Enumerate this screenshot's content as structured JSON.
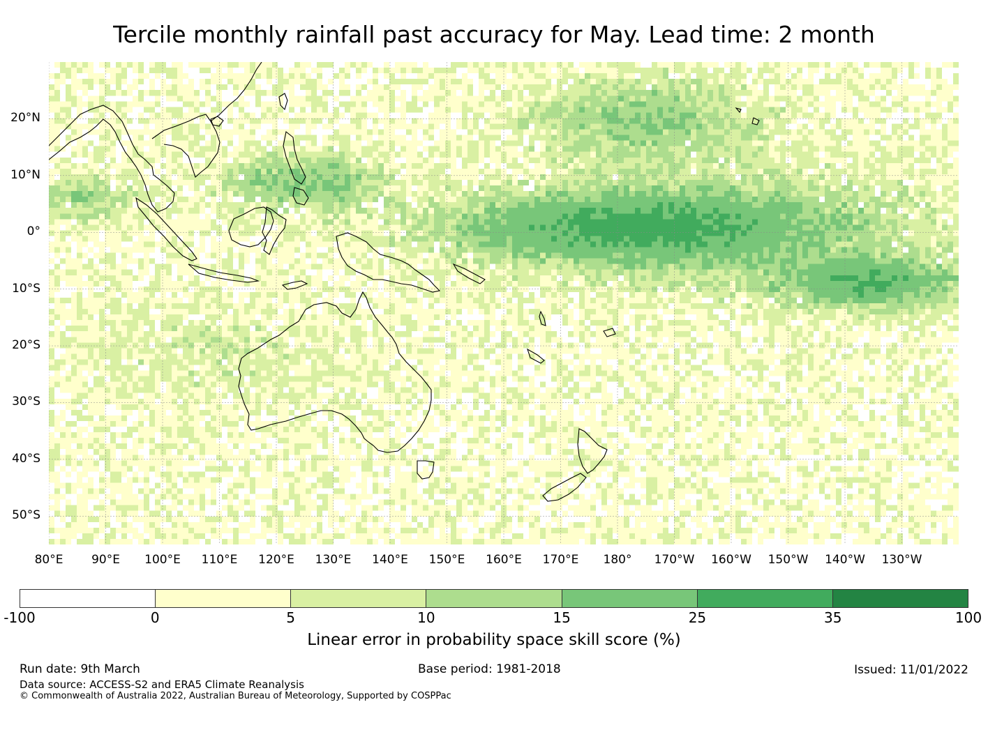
{
  "title": "Tercile monthly rainfall past accuracy for May. Lead time: 2 month",
  "map": {
    "lon_range": [
      80,
      240
    ],
    "lat_range": [
      -55,
      30
    ],
    "lat_labels": [
      "20°N",
      "10°N",
      "0°",
      "10°S",
      "20°S",
      "30°S",
      "40°S",
      "50°S"
    ],
    "lat_values": [
      20,
      10,
      0,
      -10,
      -20,
      -30,
      -40,
      -50
    ],
    "lon_labels": [
      "80°E",
      "90°E",
      "100°E",
      "110°E",
      "120°E",
      "130°E",
      "140°E",
      "150°E",
      "160°E",
      "170°E",
      "180°",
      "170°W",
      "160°W",
      "150°W",
      "140°W",
      "130°W"
    ],
    "lon_values": [
      80,
      90,
      100,
      110,
      120,
      130,
      140,
      150,
      160,
      170,
      180,
      190,
      200,
      210,
      220,
      230
    ]
  },
  "colorbar": {
    "bounds": [
      "-100",
      "0",
      "5",
      "10",
      "15",
      "25",
      "35",
      "100"
    ],
    "colors": [
      "#ffffff",
      "#ffffcc",
      "#d9f0a3",
      "#addd8e",
      "#78c679",
      "#41ab5d",
      "#238443"
    ],
    "label": "Linear error in probability space skill score (%)"
  },
  "footer": {
    "run_date": "Run date: 9th March",
    "base_period": "Base period: 1981-2018",
    "issued": "Issued: 11/01/2022",
    "data_source": "Data source: ACCESS-S2 and ERA5 Climate Reanalysis",
    "copyright": "© Commonwealth of Australia 2022, Australian Bureau of Meteorology, Supported by COSPPac"
  }
}
